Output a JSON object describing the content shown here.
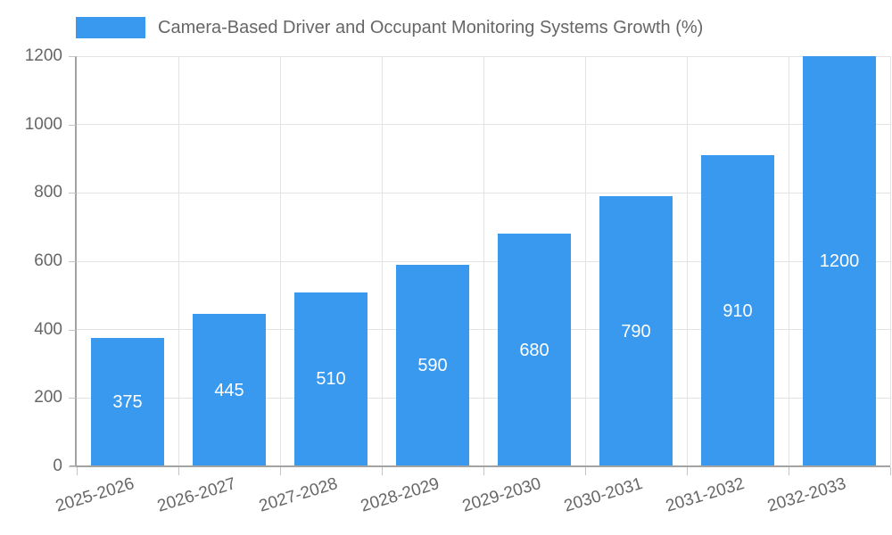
{
  "chart_data": {
    "type": "bar",
    "title": "Camera-Based Driver and Occupant Monitoring Systems Growth (%)",
    "categories": [
      "2025-2026",
      "2026-2027",
      "2027-2028",
      "2028-2029",
      "2029-2030",
      "2030-2031",
      "2031-2032",
      "2032-2033"
    ],
    "values": [
      375,
      445,
      510,
      590,
      680,
      790,
      910,
      1200
    ],
    "xlabel": "",
    "ylabel": "",
    "ylim": [
      0,
      1200
    ],
    "yticks": [
      0,
      200,
      400,
      600,
      800,
      1000,
      1200
    ],
    "grid": true,
    "legend_position": "top-left",
    "bar_label_position": "inside-center",
    "colors": {
      "bar": "#3899ee",
      "bar_label": "#ffffff",
      "title": "#666666",
      "tick_label": "#666666",
      "gridline": "#e3e3e3",
      "tick": "#c4c4c4",
      "axis_line": "#a3a3a3",
      "background": "#ffffff"
    }
  }
}
